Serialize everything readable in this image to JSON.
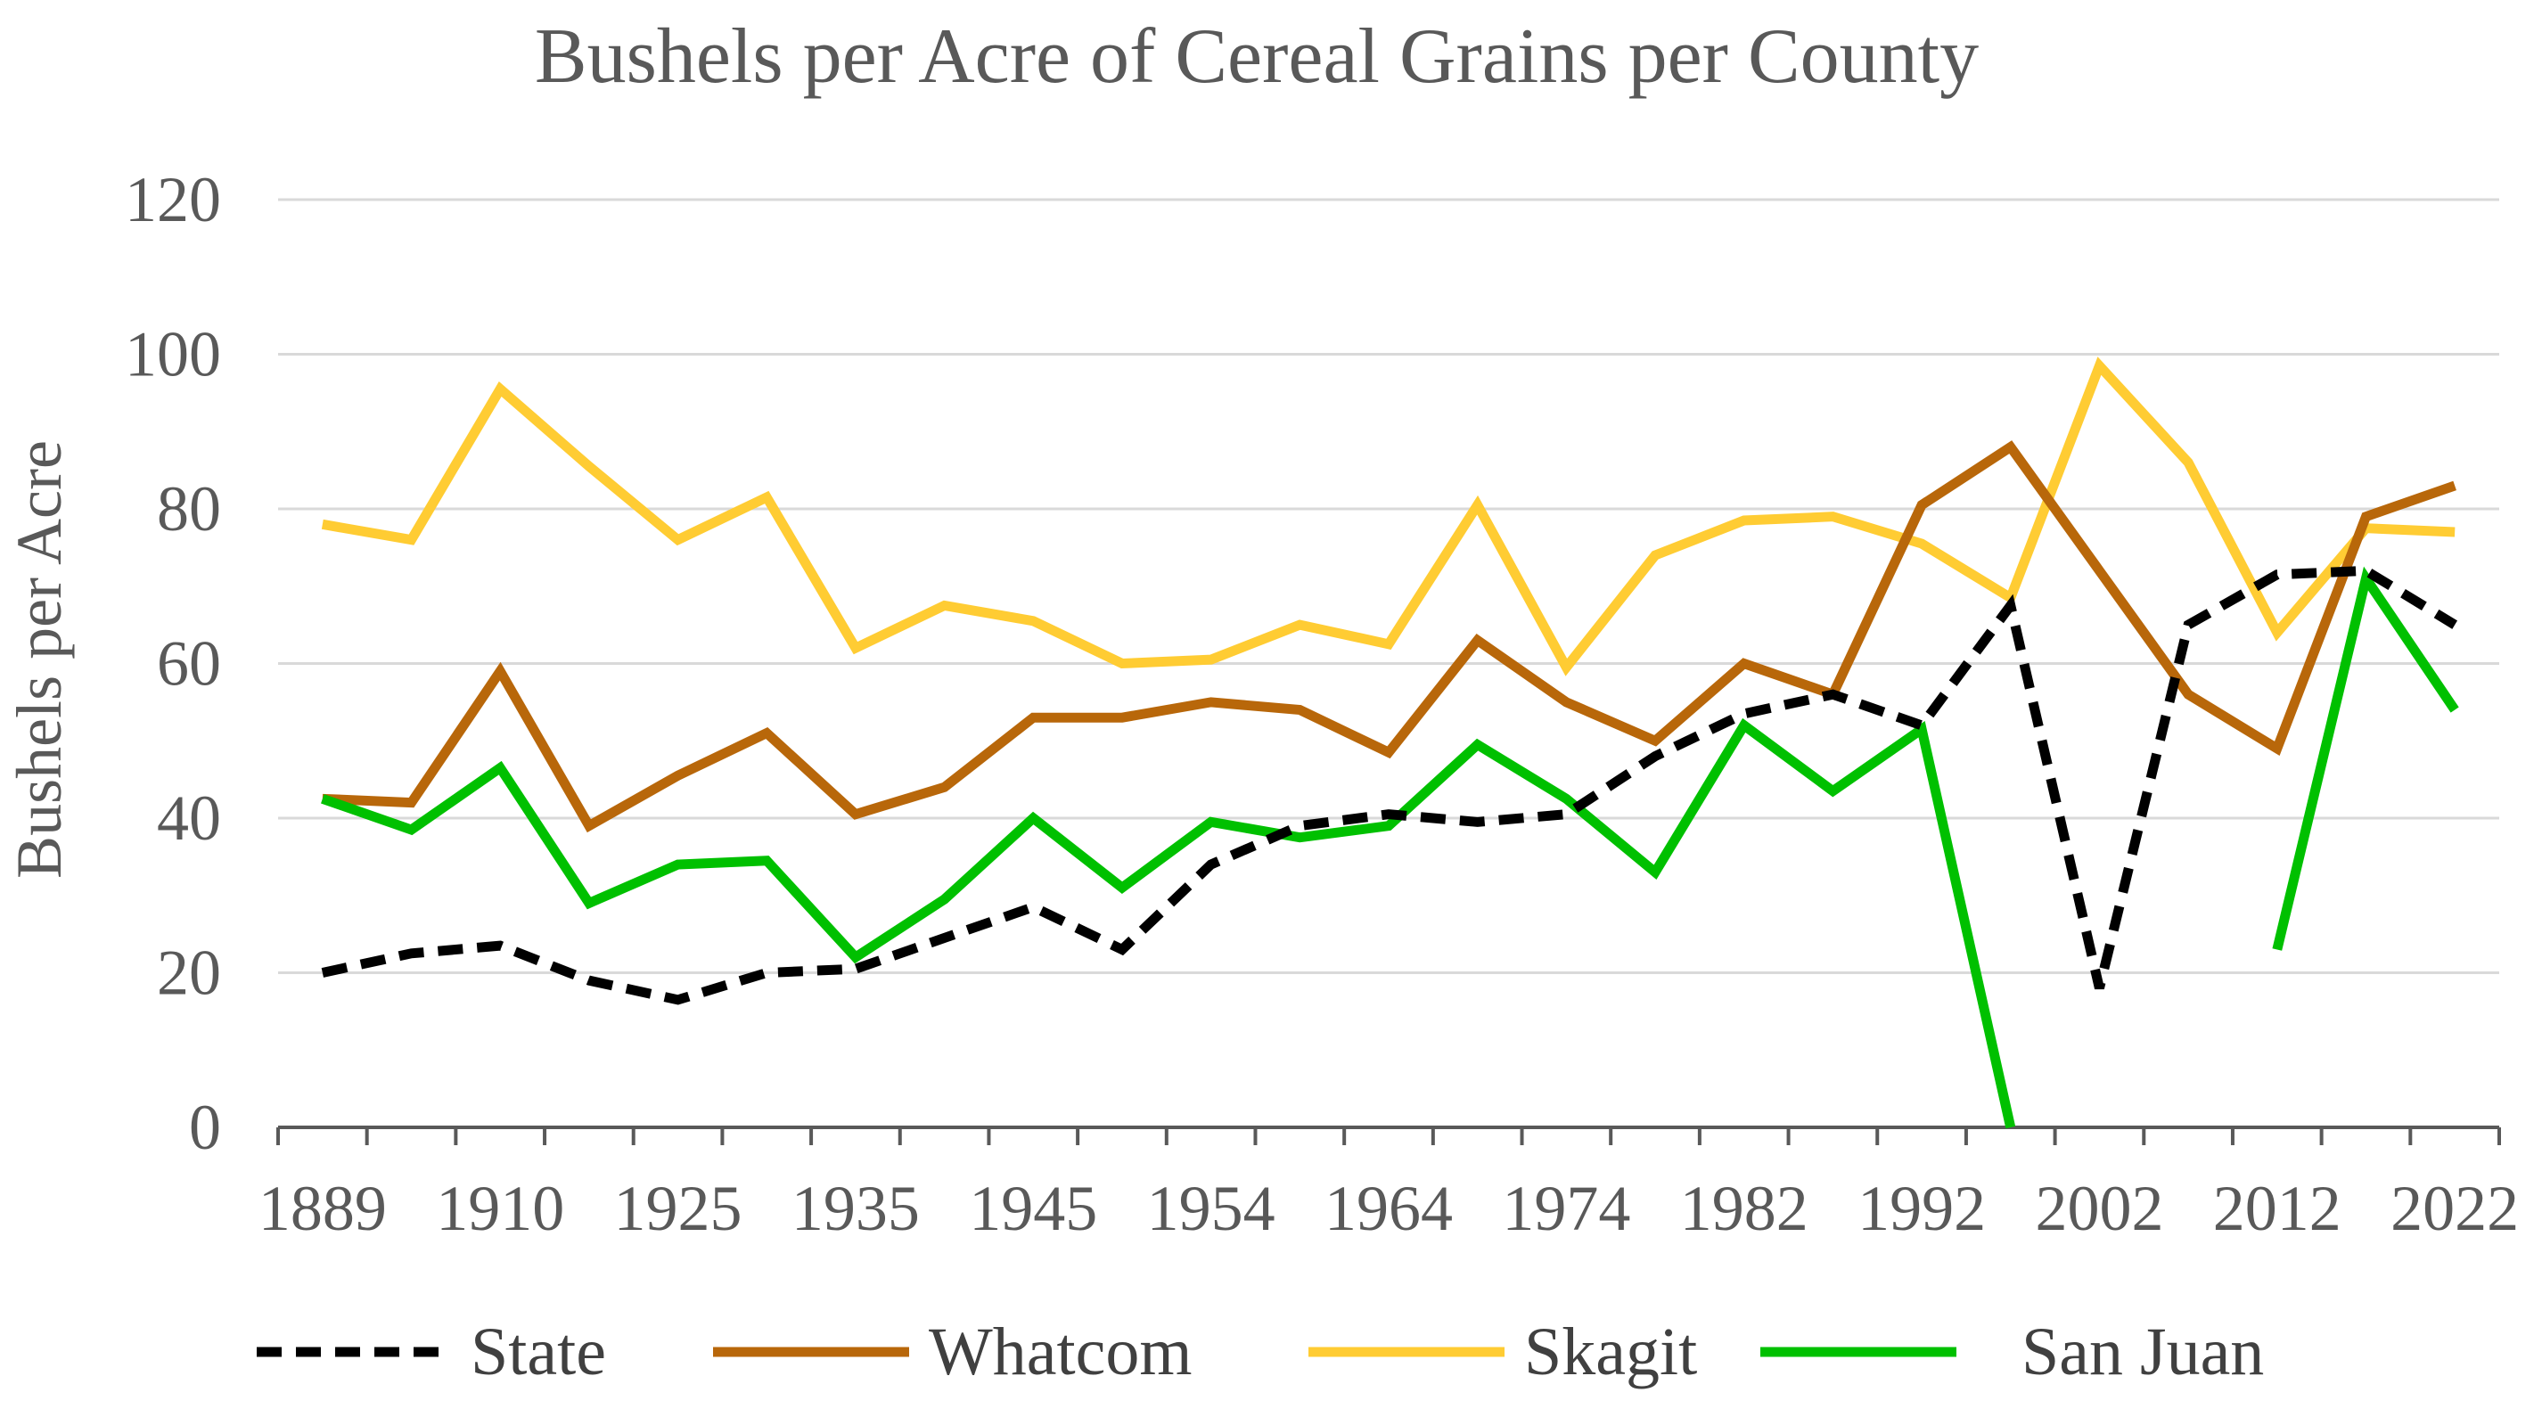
{
  "chart_data": {
    "type": "line",
    "title": "Bushels per Acre of Cereal Grains per County",
    "xlabel": "",
    "ylabel": "Bushels per Acre",
    "ylim": [
      0,
      120
    ],
    "yticks": [
      0,
      20,
      40,
      60,
      80,
      100,
      120
    ],
    "grid": true,
    "legend_position": "bottom",
    "x_tick_labels": [
      "1889",
      "1910",
      "1925",
      "1935",
      "1945",
      "1954",
      "1964",
      "1974",
      "1982",
      "1992",
      "2002",
      "2012",
      "2022"
    ],
    "num_points": 25,
    "series": [
      {
        "name": "State",
        "color": "#000000",
        "dash": "dashed",
        "values": [
          20,
          22.5,
          23.5,
          19,
          16.5,
          20,
          20.5,
          24.5,
          28.5,
          23,
          34,
          39,
          40.5,
          39.5,
          40.5,
          48,
          53.5,
          56,
          52,
          67.5,
          18,
          65,
          71.5,
          72,
          65
        ]
      },
      {
        "name": "Whatcom",
        "color": "#B8670A",
        "dash": "solid",
        "values": [
          42.5,
          42,
          59,
          39,
          45.5,
          51,
          40.5,
          44,
          53,
          53,
          55,
          54,
          48.5,
          63,
          55,
          50,
          60,
          56,
          80.5,
          88,
          72,
          56,
          49,
          79,
          83
        ]
      },
      {
        "name": "Skagit",
        "color": "#FFCC33",
        "dash": "solid",
        "values": [
          78,
          76,
          95.5,
          85.5,
          76,
          81.5,
          62,
          67.5,
          65.5,
          60,
          60.5,
          65,
          62.5,
          80.5,
          59.5,
          74,
          78.5,
          79,
          75.5,
          68.5,
          98.5,
          86,
          64,
          77.5,
          77
        ]
      },
      {
        "name": "San Juan",
        "color": "#00C000",
        "dash": "solid",
        "values": [
          42.5,
          38.5,
          46.5,
          29,
          34,
          34.5,
          22,
          29.5,
          40,
          31,
          39.5,
          37.5,
          39,
          49.5,
          42.5,
          33,
          52,
          43.5,
          51.5,
          0,
          null,
          null,
          23,
          71,
          54
        ]
      }
    ]
  }
}
